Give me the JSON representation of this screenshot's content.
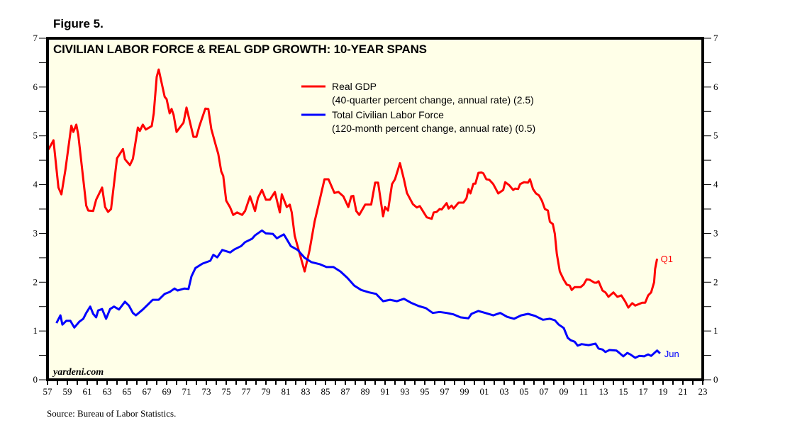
{
  "figure_label": "Figure 5.",
  "source": "Source: Bureau of Labor Statistics.",
  "watermark": "yardeni.com",
  "colors": {
    "plot_background": "#ffffe8",
    "gdp": "#ff0000",
    "labor": "#0000ff",
    "frame": "#000000"
  },
  "chart_data": {
    "type": "line",
    "title": "CIVILIAN LABOR FORCE & REAL GDP GROWTH: 10-YEAR SPANS",
    "xlabel": "",
    "ylabel": "",
    "xlim": [
      1957,
      2023
    ],
    "ylim": [
      0,
      7
    ],
    "grid": false,
    "legend_position": "top-center",
    "x_tick_labels": [
      "57",
      "59",
      "61",
      "63",
      "65",
      "67",
      "69",
      "71",
      "73",
      "75",
      "77",
      "79",
      "81",
      "83",
      "85",
      "87",
      "89",
      "91",
      "93",
      "95",
      "97",
      "99",
      "01",
      "03",
      "05",
      "07",
      "09",
      "11",
      "13",
      "15",
      "17",
      "19",
      "21",
      "23"
    ],
    "x_tick_years": [
      1957,
      1959,
      1961,
      1963,
      1965,
      1967,
      1969,
      1971,
      1973,
      1975,
      1977,
      1979,
      1981,
      1983,
      1985,
      1987,
      1989,
      1991,
      1993,
      1995,
      1997,
      1999,
      2001,
      2003,
      2005,
      2007,
      2009,
      2011,
      2013,
      2015,
      2017,
      2019,
      2021,
      2023
    ],
    "y_tick_labels": [
      "0",
      "1",
      "2",
      "3",
      "4",
      "5",
      "6",
      "7"
    ],
    "y_ticks": [
      0,
      1,
      2,
      3,
      4,
      5,
      6,
      7
    ],
    "series": [
      {
        "name": "Real GDP",
        "legend": [
          "Real GDP",
          "(40-quarter percent change, annual rate) (2.5)"
        ],
        "end_label": "Q1",
        "latest_value": 2.5,
        "x": [
          1957.1,
          1957.6,
          1958.1,
          1958.4,
          1958.8,
          1959.4,
          1959.6,
          1959.9,
          1960.1,
          1960.9,
          1961.1,
          1961.6,
          1961.9,
          1962.5,
          1962.8,
          1963.1,
          1963.4,
          1964.0,
          1964.6,
          1964.8,
          1965.3,
          1965.6,
          1966.1,
          1966.3,
          1966.6,
          1966.9,
          1967.5,
          1967.7,
          1968.0,
          1968.2,
          1968.8,
          1969.0,
          1969.3,
          1969.5,
          1969.7,
          1970.0,
          1970.7,
          1971.0,
          1971.7,
          1972.0,
          1972.3,
          1972.9,
          1973.2,
          1973.5,
          1974.0,
          1974.2,
          1974.5,
          1974.7,
          1975.0,
          1975.4,
          1975.7,
          1976.1,
          1976.6,
          1976.9,
          1977.4,
          1977.6,
          1977.9,
          1978.2,
          1978.6,
          1979.0,
          1979.4,
          1979.9,
          1980.4,
          1980.6,
          1981.1,
          1981.4,
          1981.6,
          1981.9,
          1982.9,
          1983.4,
          1983.9,
          1984.5,
          1984.9,
          1985.3,
          1985.9,
          1986.3,
          1986.8,
          1987.3,
          1987.6,
          1987.8,
          1988.1,
          1988.4,
          1989.0,
          1989.6,
          1990.0,
          1990.3,
          1990.8,
          1991.0,
          1991.3,
          1991.7,
          1992.0,
          1992.5,
          1992.9,
          1993.2,
          1993.8,
          1994.2,
          1994.5,
          1995.2,
          1995.7,
          1995.9,
          1996.2,
          1996.5,
          1996.7,
          1997.2,
          1997.4,
          1997.7,
          1997.9,
          1998.4,
          1998.9,
          1999.2,
          1999.4,
          1999.6,
          1999.9,
          2000.1,
          2000.4,
          2000.7,
          2000.9,
          2001.2,
          2001.5,
          2001.9,
          2002.4,
          2002.9,
          2003.1,
          2003.5,
          2003.9,
          2004.1,
          2004.4,
          2004.6,
          2005.0,
          2005.4,
          2005.6,
          2005.9,
          2006.2,
          2006.5,
          2006.8,
          2007.1,
          2007.4,
          2007.6,
          2007.9,
          2008.1,
          2008.3,
          2008.6,
          2009.0,
          2009.3,
          2009.6,
          2009.8,
          2010.1,
          2010.7,
          2011.0,
          2011.3,
          2011.6,
          2012.1,
          2012.3,
          2012.5,
          2012.9,
          2013.2,
          2013.5,
          2014.0,
          2014.4,
          2014.8,
          2015.2,
          2015.5,
          2015.9,
          2016.2,
          2016.9,
          2017.2,
          2017.5,
          2017.8,
          2018.1,
          2018.2,
          2018.4
        ],
        "y": [
          4.72,
          4.91,
          3.94,
          3.8,
          4.3,
          5.21,
          5.08,
          5.23,
          5.02,
          3.57,
          3.47,
          3.46,
          3.69,
          3.94,
          3.54,
          3.44,
          3.5,
          4.54,
          4.73,
          4.52,
          4.4,
          4.53,
          5.17,
          5.1,
          5.23,
          5.13,
          5.2,
          5.46,
          6.21,
          6.36,
          5.8,
          5.75,
          5.46,
          5.55,
          5.43,
          5.08,
          5.27,
          5.58,
          4.98,
          4.98,
          5.2,
          5.56,
          5.55,
          5.14,
          4.77,
          4.63,
          4.27,
          4.18,
          3.67,
          3.53,
          3.38,
          3.43,
          3.38,
          3.46,
          3.76,
          3.64,
          3.46,
          3.73,
          3.89,
          3.69,
          3.69,
          3.85,
          3.43,
          3.8,
          3.54,
          3.59,
          3.43,
          2.95,
          2.22,
          2.66,
          3.24,
          3.76,
          4.11,
          4.11,
          3.83,
          3.85,
          3.76,
          3.54,
          3.76,
          3.77,
          3.46,
          3.38,
          3.59,
          3.59,
          4.04,
          4.04,
          3.35,
          3.54,
          3.47,
          4.01,
          4.11,
          4.44,
          4.11,
          3.83,
          3.6,
          3.53,
          3.56,
          3.33,
          3.3,
          3.43,
          3.44,
          3.5,
          3.49,
          3.62,
          3.51,
          3.57,
          3.51,
          3.63,
          3.63,
          3.72,
          3.91,
          3.82,
          4.02,
          4.02,
          4.24,
          4.25,
          4.23,
          4.11,
          4.1,
          4.01,
          3.82,
          3.89,
          4.05,
          3.99,
          3.89,
          3.92,
          3.91,
          4.01,
          4.05,
          4.04,
          4.11,
          3.91,
          3.82,
          3.78,
          3.67,
          3.5,
          3.47,
          3.24,
          3.19,
          2.99,
          2.58,
          2.22,
          2.05,
          1.95,
          1.93,
          1.84,
          1.9,
          1.9,
          1.95,
          2.06,
          2.05,
          1.99,
          1.99,
          2.02,
          1.83,
          1.79,
          1.7,
          1.79,
          1.7,
          1.73,
          1.6,
          1.48,
          1.57,
          1.52,
          1.58,
          1.58,
          1.73,
          1.79,
          2.0,
          2.27,
          2.48
        ]
      },
      {
        "name": "Total Civilian Labor Force",
        "legend": [
          "Total Civilian Labor Force",
          "(120-month percent change, annual rate) (0.5)"
        ],
        "end_label": "Jun",
        "latest_value": 0.5,
        "x": [
          1957.9,
          1958.3,
          1958.5,
          1958.9,
          1959.3,
          1959.7,
          1960.2,
          1960.6,
          1960.9,
          1961.3,
          1961.6,
          1961.9,
          1962.1,
          1962.5,
          1962.9,
          1963.3,
          1963.7,
          1964.2,
          1964.8,
          1965.2,
          1965.6,
          1965.9,
          1966.6,
          1967.1,
          1967.6,
          1968.2,
          1968.8,
          1969.3,
          1969.8,
          1970.1,
          1970.8,
          1971.2,
          1971.5,
          1971.9,
          1972.6,
          1973.4,
          1973.7,
          1974.1,
          1974.6,
          1975.4,
          1975.8,
          1976.5,
          1976.9,
          1977.6,
          1977.9,
          1978.6,
          1979.0,
          1979.7,
          1980.1,
          1980.8,
          1981.1,
          1981.5,
          1982.2,
          1982.9,
          1983.6,
          1984.4,
          1985.1,
          1985.8,
          1986.5,
          1987.2,
          1987.9,
          1988.6,
          1989.4,
          1990.1,
          1990.8,
          1991.5,
          1992.2,
          1992.9,
          1993.6,
          1994.4,
          1995.1,
          1995.8,
          1996.5,
          1997.2,
          1997.9,
          1998.6,
          1999.4,
          1999.7,
          2000.4,
          2001.1,
          2001.9,
          2002.6,
          2003.3,
          2004.0,
          2004.7,
          2005.4,
          2006.1,
          2006.9,
          2007.6,
          2008.1,
          2008.5,
          2009.0,
          2009.4,
          2009.7,
          2010.1,
          2010.4,
          2010.8,
          2011.5,
          2012.2,
          2012.5,
          2012.9,
          2013.2,
          2013.6,
          2014.3,
          2014.6,
          2015.0,
          2015.4,
          2015.7,
          2016.2,
          2016.6,
          2017.1,
          2017.5,
          2017.8,
          2018.4,
          2018.7
        ],
        "y": [
          1.16,
          1.32,
          1.13,
          1.21,
          1.21,
          1.07,
          1.19,
          1.25,
          1.37,
          1.5,
          1.35,
          1.28,
          1.42,
          1.45,
          1.25,
          1.45,
          1.5,
          1.44,
          1.6,
          1.52,
          1.37,
          1.32,
          1.44,
          1.54,
          1.64,
          1.64,
          1.76,
          1.8,
          1.87,
          1.83,
          1.87,
          1.86,
          2.12,
          2.29,
          2.38,
          2.44,
          2.56,
          2.51,
          2.66,
          2.61,
          2.67,
          2.74,
          2.82,
          2.89,
          2.96,
          3.06,
          3.0,
          2.99,
          2.9,
          2.98,
          2.88,
          2.74,
          2.66,
          2.5,
          2.41,
          2.37,
          2.31,
          2.31,
          2.22,
          2.09,
          1.93,
          1.84,
          1.79,
          1.76,
          1.61,
          1.64,
          1.61,
          1.66,
          1.58,
          1.51,
          1.47,
          1.37,
          1.39,
          1.37,
          1.34,
          1.28,
          1.26,
          1.35,
          1.41,
          1.37,
          1.32,
          1.37,
          1.29,
          1.25,
          1.32,
          1.35,
          1.31,
          1.23,
          1.25,
          1.22,
          1.13,
          1.06,
          0.86,
          0.81,
          0.78,
          0.7,
          0.73,
          0.71,
          0.74,
          0.64,
          0.62,
          0.57,
          0.61,
          0.6,
          0.55,
          0.48,
          0.55,
          0.52,
          0.45,
          0.49,
          0.48,
          0.52,
          0.49,
          0.6,
          0.54
        ]
      }
    ]
  }
}
